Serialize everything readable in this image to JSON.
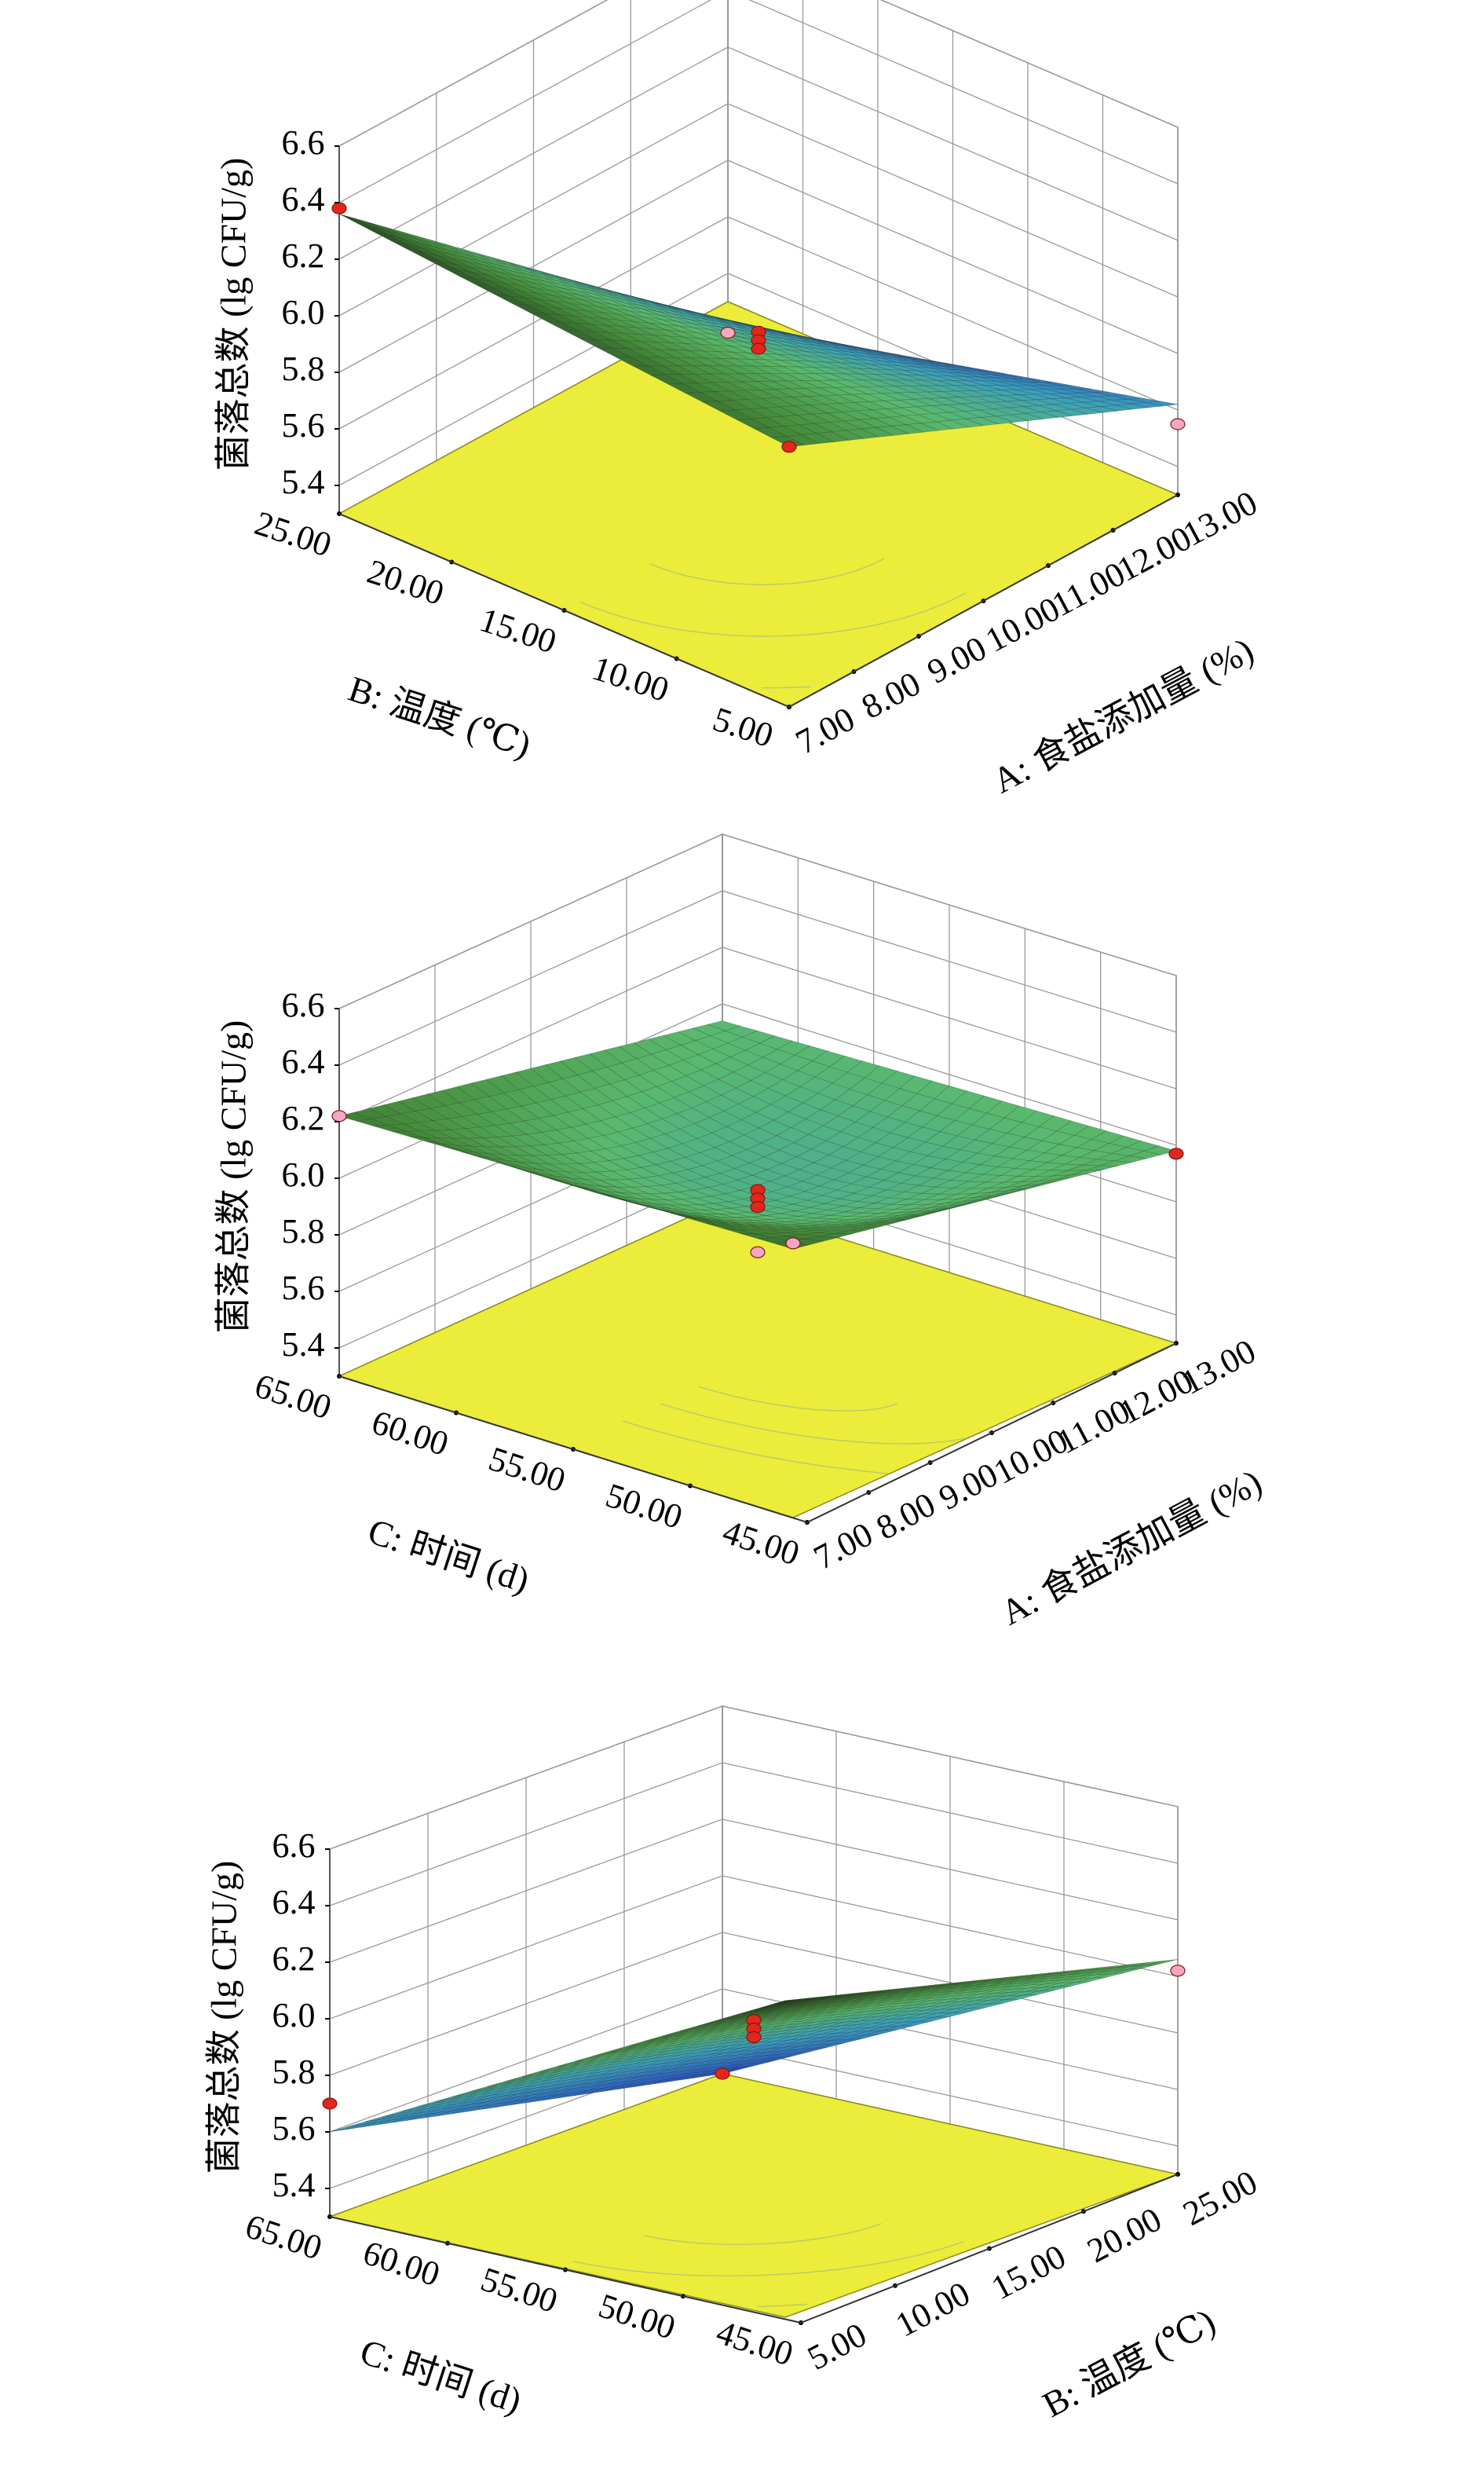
{
  "chart_data": [
    {
      "type": "surface",
      "zlabel": "菌落总数 (lg CFU/g)",
      "zticks": [
        "5.4",
        "5.6",
        "5.8",
        "6.0",
        "6.2",
        "6.4",
        "6.6"
      ],
      "zlim": [
        5.3,
        6.6
      ],
      "xaxis": {
        "label": "A: 食盐添加量 (%)",
        "ticks": [
          "7.00",
          "8.00",
          "9.00",
          "10.00",
          "11.00",
          "12.00",
          "13.00"
        ],
        "range": [
          7,
          13
        ]
      },
      "yaxis": {
        "label": "B: 温度 (℃)",
        "ticks": [
          "5.00",
          "10.00",
          "15.00",
          "20.00",
          "25.00"
        ],
        "range": [
          5,
          25
        ]
      },
      "grid": true,
      "surface_corners": {
        "x_low_y_low": 5.22,
        "x_high_y_low": 5.62,
        "x_low_y_high": 6.36,
        "x_high_y_high": 6.22,
        "center": 5.87
      },
      "points": [
        {
          "x": 7,
          "y": 25,
          "z": 6.38,
          "color": "red"
        },
        {
          "x": 13,
          "y": 25,
          "z": 6.22,
          "color": "red"
        },
        {
          "x": 13,
          "y": 5,
          "z": 5.55,
          "color": "pink"
        },
        {
          "x": 7,
          "y": 5,
          "z": 5.19,
          "color": "pink"
        },
        {
          "x": 10,
          "y": 15,
          "z": 5.91,
          "color": "red"
        },
        {
          "x": 10,
          "y": 15,
          "z": 5.88,
          "color": "red"
        },
        {
          "x": 10,
          "y": 15,
          "z": 5.85,
          "color": "red"
        }
      ]
    },
    {
      "type": "surface",
      "zlabel": "菌落总数 (lg CFU/g)",
      "zticks": [
        "5.4",
        "5.6",
        "5.8",
        "6.0",
        "6.2",
        "6.4",
        "6.6"
      ],
      "zlim": [
        5.3,
        6.6
      ],
      "xaxis": {
        "label": "A: 食盐添加量 (%)",
        "ticks": [
          "7.00",
          "8.00",
          "9.00",
          "10.00",
          "11.00",
          "12.00",
          "13.00"
        ],
        "range": [
          7,
          13
        ]
      },
      "yaxis": {
        "label": "C: 时间 (d)",
        "ticks": [
          "45.00",
          "50.00",
          "55.00",
          "60.00",
          "65.00"
        ],
        "range": [
          45,
          65
        ]
      },
      "grid": true,
      "surface_corners": {
        "x_low_y_low": 5.94,
        "x_high_y_low": 5.98,
        "x_low_y_high": 6.22,
        "x_high_y_high": 6.25,
        "center": 5.88
      },
      "points": [
        {
          "x": 7,
          "y": 65,
          "z": 6.22,
          "color": "pink"
        },
        {
          "x": 13,
          "y": 65,
          "z": 6.27,
          "color": "pink"
        },
        {
          "x": 13,
          "y": 45,
          "z": 5.97,
          "color": "red"
        },
        {
          "x": 10,
          "y": 55,
          "z": 5.9,
          "color": "red"
        },
        {
          "x": 10,
          "y": 55,
          "z": 5.87,
          "color": "red"
        },
        {
          "x": 10,
          "y": 55,
          "z": 5.84,
          "color": "red"
        },
        {
          "x": 10,
          "y": 55,
          "z": 5.68,
          "color": "pink"
        }
      ]
    },
    {
      "type": "surface",
      "zlabel": "菌落总数 (lg CFU/g)",
      "zticks": [
        "5.4",
        "5.6",
        "5.8",
        "6.0",
        "6.2",
        "6.4",
        "6.6"
      ],
      "zlim": [
        5.3,
        6.6
      ],
      "xaxis": {
        "label": "B: 温度 (℃)",
        "ticks": [
          "5.00",
          "10.00",
          "15.00",
          "20.00",
          "25.00"
        ],
        "range": [
          5,
          25
        ]
      },
      "yaxis": {
        "label": "C: 时间 (d)",
        "ticks": [
          "45.00",
          "50.00",
          "55.00",
          "60.00",
          "65.00"
        ],
        "range": [
          45,
          65
        ]
      },
      "grid": true,
      "surface_corners": {
        "x_low_y_low": 5.3,
        "x_high_y_low": 6.06,
        "x_low_y_high": 5.6,
        "x_high_y_high": 6.42,
        "center": 5.88
      },
      "points": [
        {
          "x": 5,
          "y": 65,
          "z": 5.7,
          "color": "red"
        },
        {
          "x": 5,
          "y": 45,
          "z": 5.3,
          "color": "red"
        },
        {
          "x": 25,
          "y": 45,
          "z": 6.02,
          "color": "pink"
        },
        {
          "x": 15,
          "y": 55,
          "z": 5.92,
          "color": "red"
        },
        {
          "x": 15,
          "y": 55,
          "z": 5.89,
          "color": "red"
        },
        {
          "x": 15,
          "y": 55,
          "z": 5.86,
          "color": "red"
        }
      ]
    }
  ]
}
